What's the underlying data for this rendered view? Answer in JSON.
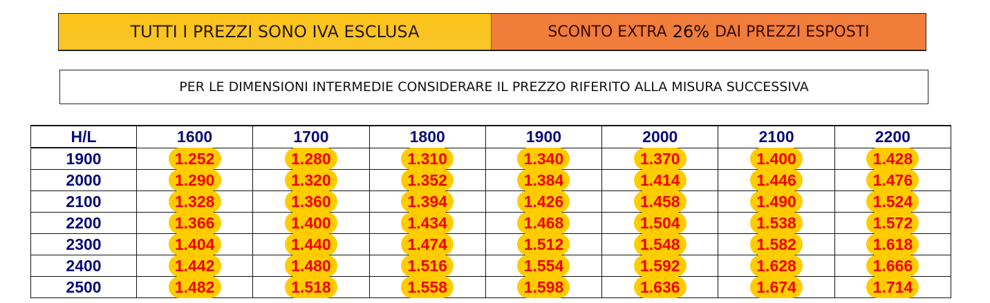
{
  "banner": {
    "left_text": "TUTTI I PREZZI SONO IVA ESCLUSA",
    "right_prefix": "SCONTO EXTRA",
    "discount": "26%",
    "right_suffix": "DAI PREZZI ESPOSTI",
    "colors": {
      "left_bg": "#fcc419",
      "right_bg": "#f07d3a"
    }
  },
  "note": "PER LE DIMENSIONI INTERMEDIE CONSIDERARE IL PREZZO RIFERITO ALLA MISURA SUCCESSIVA",
  "table": {
    "corner": "H/L",
    "columns": [
      "1600",
      "1700",
      "1800",
      "1900",
      "2000",
      "2100",
      "2200"
    ],
    "rows": [
      {
        "h": "1900",
        "prices": [
          "1.252",
          "1.280",
          "1.310",
          "1.340",
          "1.370",
          "1.400",
          "1.428"
        ]
      },
      {
        "h": "2000",
        "prices": [
          "1.290",
          "1.320",
          "1.352",
          "1.384",
          "1.414",
          "1.446",
          "1.476"
        ]
      },
      {
        "h": "2100",
        "prices": [
          "1.328",
          "1.360",
          "1.394",
          "1.426",
          "1.458",
          "1.490",
          "1.524"
        ]
      },
      {
        "h": "2200",
        "prices": [
          "1.366",
          "1.400",
          "1.434",
          "1.468",
          "1.504",
          "1.538",
          "1.572"
        ]
      },
      {
        "h": "2300",
        "prices": [
          "1.404",
          "1.440",
          "1.474",
          "1.512",
          "1.548",
          "1.582",
          "1.618"
        ]
      },
      {
        "h": "2400",
        "prices": [
          "1.442",
          "1.480",
          "1.516",
          "1.554",
          "1.592",
          "1.628",
          "1.666"
        ]
      },
      {
        "h": "2500",
        "prices": [
          "1.482",
          "1.518",
          "1.558",
          "1.598",
          "1.636",
          "1.674",
          "1.714"
        ]
      }
    ],
    "colors": {
      "header": "#0a0a78",
      "price": "#f00000",
      "highlight": "#ffcc00"
    }
  }
}
